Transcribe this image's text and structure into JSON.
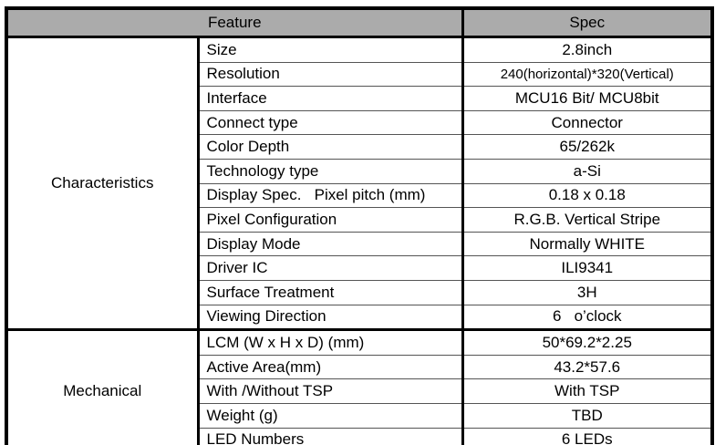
{
  "colors": {
    "header_bg": "#ababab",
    "border": "#000000",
    "text": "#000000",
    "thin_divider": "#555555"
  },
  "header": {
    "feature_label": "Feature",
    "spec_label": "Spec"
  },
  "sections": [
    {
      "name": "Characteristics",
      "rows": [
        {
          "feature": "Size",
          "spec": "2.8inch"
        },
        {
          "feature": "Resolution",
          "spec": "240(horizontal)*320(Vertical)"
        },
        {
          "feature": "Interface",
          "spec": "MCU16 Bit/ MCU8bit"
        },
        {
          "feature": "Connect type",
          "spec": "Connector"
        },
        {
          "feature": "Color Depth",
          "spec": "65/262k"
        },
        {
          "feature": "Technology type",
          "spec": "a-Si"
        },
        {
          "feature": "Display Spec.   Pixel pitch (mm)",
          "spec": "0.18 x 0.18"
        },
        {
          "feature": "Pixel Configuration",
          "spec": "R.G.B. Vertical Stripe"
        },
        {
          "feature": "Display Mode",
          "spec": "Normally WHITE"
        },
        {
          "feature": "Driver IC",
          "spec": "ILI9341"
        },
        {
          "feature": "Surface Treatment",
          "spec": "3H"
        },
        {
          "feature": "Viewing Direction",
          "spec": "6   o’clock"
        }
      ]
    },
    {
      "name": "Mechanical",
      "rows": [
        {
          "feature": "LCM (W x H x D) (mm)",
          "spec": "50*69.2*2.25"
        },
        {
          "feature": "Active Area(mm)",
          "spec": "43.2*57.6"
        },
        {
          "feature": "With /Without TSP",
          "spec": "With TSP"
        },
        {
          "feature": "Weight (g)",
          "spec": "TBD"
        },
        {
          "feature": "LED Numbers",
          "spec": "6 LEDs"
        }
      ]
    }
  ]
}
